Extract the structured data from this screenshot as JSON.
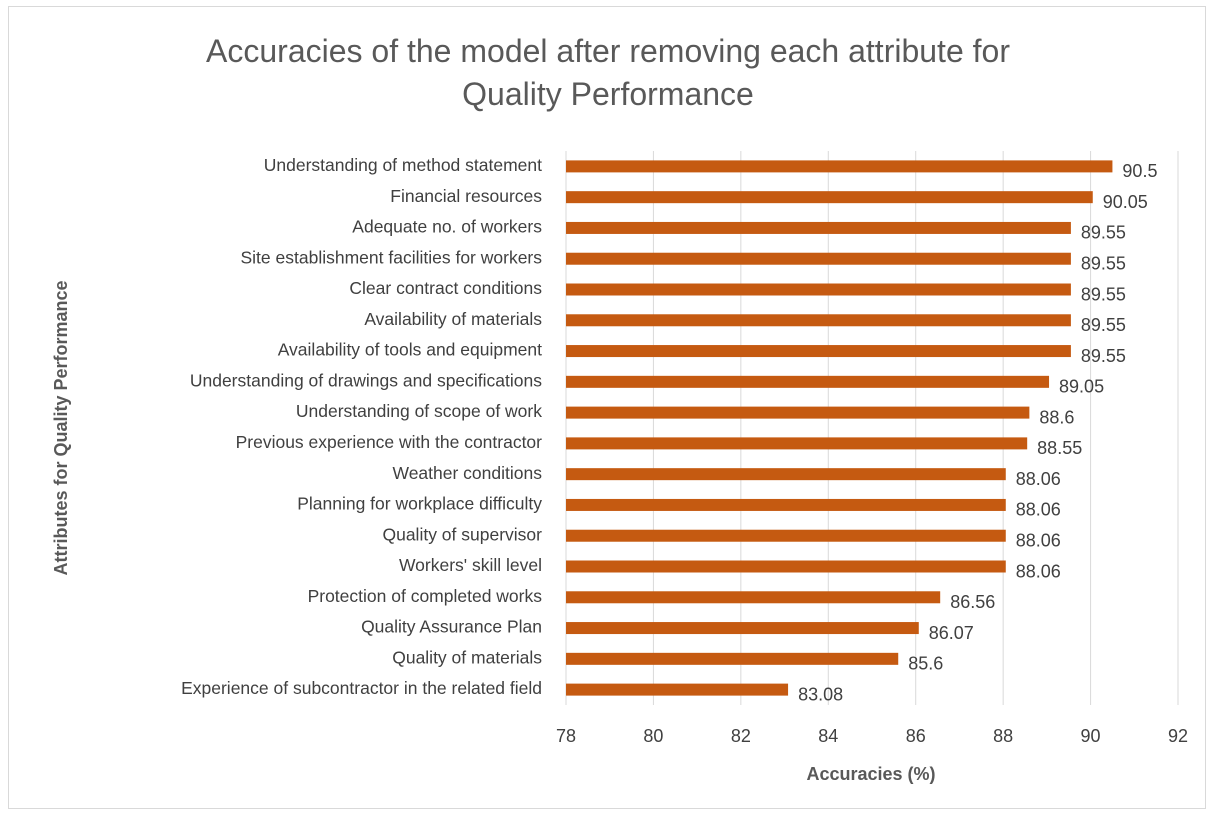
{
  "chart_data": {
    "type": "bar",
    "orientation": "horizontal",
    "title": "Accuracies of the model after removing each attribute for Quality Performance",
    "x_label": "Accuracies (%)",
    "y_label": "Attributes for Quality Performance",
    "categories": [
      "Understanding of method statement",
      "Financial resources",
      "Adequate no. of workers",
      "Site establishment facilities for workers",
      "Clear contract conditions",
      "Availability of materials",
      "Availability of tools and equipment",
      "Understanding of drawings and specifications",
      "Understanding of scope of work",
      "Previous experience with the contractor",
      "Weather conditions",
      "Planning for workplace difficulty",
      "Quality of supervisor",
      "Workers' skill level",
      "Protection of completed works",
      "Quality Assurance Plan",
      "Quality of materials",
      "Experience of subcontractor in the related field"
    ],
    "values": [
      90.5,
      90.05,
      89.55,
      89.55,
      89.55,
      89.55,
      89.55,
      89.05,
      88.6,
      88.55,
      88.06,
      88.06,
      88.06,
      88.06,
      86.56,
      86.07,
      85.6,
      83.08
    ],
    "color": "#c55a11",
    "xlim": [
      78,
      92
    ],
    "xticks": [
      78,
      80,
      82,
      84,
      86,
      88,
      90,
      92
    ],
    "grid": true
  }
}
